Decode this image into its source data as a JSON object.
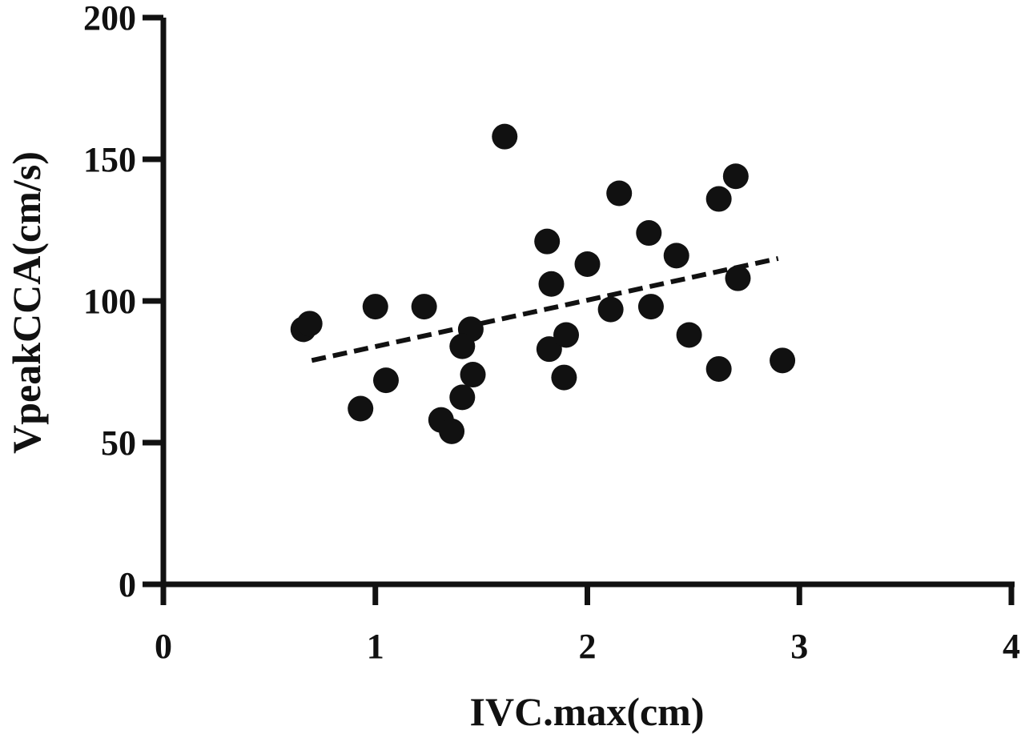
{
  "chart_data": {
    "type": "scatter",
    "title": "",
    "xlabel": "IVC.max(cm)",
    "ylabel": "VpeakCCA(cm/s)",
    "xlim": [
      0,
      4
    ],
    "ylim": [
      0,
      200
    ],
    "x_ticks": [
      0,
      1,
      2,
      3,
      4
    ],
    "y_ticks": [
      0,
      50,
      100,
      150,
      200
    ],
    "grid": false,
    "legend": "none",
    "point_color": "#111111",
    "trend_line": {
      "style": "dashed",
      "color": "#111111",
      "x": [
        0.7,
        2.9
      ],
      "y": [
        79,
        115
      ]
    },
    "series": [
      {
        "x": [
          0.66,
          0.69,
          1.0,
          1.05,
          1.23,
          1.45,
          1.41,
          1.46,
          0.93,
          1.31,
          1.36,
          1.41,
          1.61,
          1.81,
          1.83,
          1.82,
          1.9,
          1.89,
          2.0,
          2.11,
          2.15,
          2.29,
          2.3,
          2.42,
          2.48,
          2.62,
          2.62,
          2.7,
          2.71,
          2.92
        ],
        "y": [
          90,
          92,
          98,
          72,
          98,
          90,
          84,
          74,
          62,
          58,
          54,
          66,
          158,
          121,
          106,
          83,
          88,
          73,
          113,
          97,
          138,
          124,
          98,
          116,
          88,
          76,
          136,
          144,
          108,
          79
        ]
      }
    ]
  }
}
